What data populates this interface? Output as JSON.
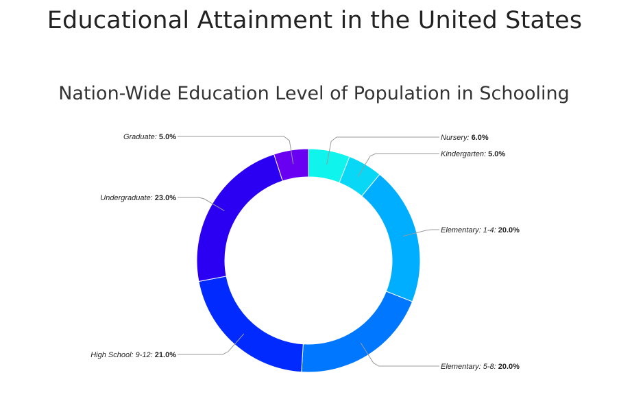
{
  "page": {
    "title": "Educational Attainment in the United States"
  },
  "chart_data": {
    "type": "pie",
    "donut": true,
    "title": "Nation-Wide Education Level of Population in Schooling",
    "slices": [
      {
        "label": "Nursery",
        "value": 6.0,
        "color": "#10F4EE"
      },
      {
        "label": "Kindergarten",
        "value": 5.0,
        "color": "#08D8F6"
      },
      {
        "label": "Elementary: 1-4",
        "value": 20.0,
        "color": "#00AEFF"
      },
      {
        "label": "Elementary: 5-8",
        "value": 20.0,
        "color": "#0077FF"
      },
      {
        "label": "High School: 9-12",
        "value": 21.0,
        "color": "#002AFF"
      },
      {
        "label": "Undergraduate",
        "value": 23.0,
        "color": "#2B00F2"
      },
      {
        "label": "Graduate",
        "value": 5.0,
        "color": "#6A00F2"
      }
    ],
    "value_suffix": "%"
  }
}
